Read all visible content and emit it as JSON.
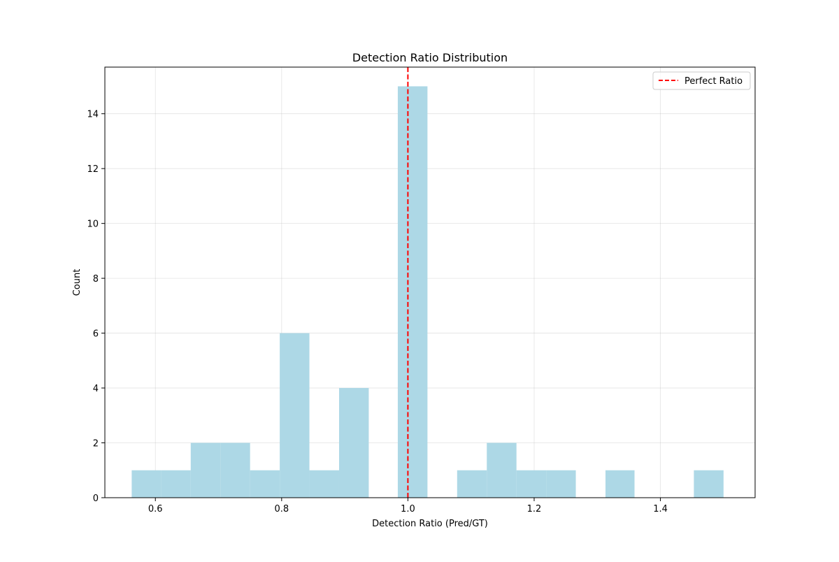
{
  "chart_data": {
    "type": "bar",
    "subtype": "histogram",
    "title": "Detection Ratio Distribution",
    "xlabel": "Detection Ratio (Pred/GT)",
    "ylabel": "Count",
    "xlim": [
      0.52,
      1.55
    ],
    "ylim": [
      0,
      15.7
    ],
    "x_ticks": [
      0.6,
      0.8,
      1.0,
      1.2,
      1.4
    ],
    "x_tick_labels": [
      "0.6",
      "0.8",
      "1.0",
      "1.2",
      "1.4"
    ],
    "y_ticks": [
      0,
      2,
      4,
      6,
      8,
      10,
      12,
      14
    ],
    "y_tick_labels": [
      "0",
      "2",
      "4",
      "6",
      "8",
      "10",
      "12",
      "14"
    ],
    "grid": true,
    "bar_color": "#add8e6",
    "bins": [
      {
        "start": 0.5625,
        "end": 0.609,
        "count": 1
      },
      {
        "start": 0.609,
        "end": 0.656,
        "count": 1
      },
      {
        "start": 0.656,
        "end": 0.703,
        "count": 2
      },
      {
        "start": 0.703,
        "end": 0.75,
        "count": 2
      },
      {
        "start": 0.75,
        "end": 0.797,
        "count": 1
      },
      {
        "start": 0.797,
        "end": 0.844,
        "count": 6
      },
      {
        "start": 0.844,
        "end": 0.891,
        "count": 1
      },
      {
        "start": 0.891,
        "end": 0.938,
        "count": 4
      },
      {
        "start": 0.984,
        "end": 1.031,
        "count": 15
      },
      {
        "start": 1.078,
        "end": 1.125,
        "count": 1
      },
      {
        "start": 1.125,
        "end": 1.172,
        "count": 2
      },
      {
        "start": 1.172,
        "end": 1.219,
        "count": 1
      },
      {
        "start": 1.219,
        "end": 1.266,
        "count": 1
      },
      {
        "start": 1.313,
        "end": 1.359,
        "count": 1
      },
      {
        "start": 1.453,
        "end": 1.5,
        "count": 1
      }
    ],
    "reference_line": {
      "x": 1.0,
      "label": "Perfect Ratio",
      "color": "#ff0000",
      "style": "dashed"
    },
    "legend": {
      "position": "top-right",
      "entries": [
        "Perfect Ratio"
      ]
    }
  }
}
